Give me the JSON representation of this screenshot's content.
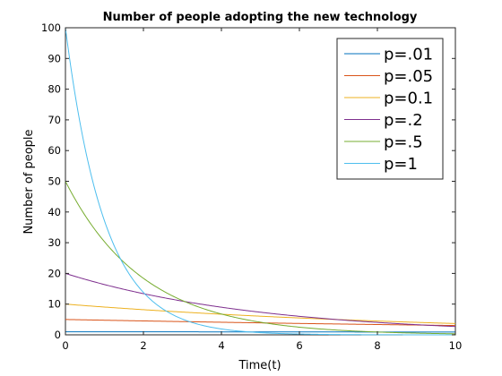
{
  "chart_data": {
    "type": "line",
    "title": "Number of people adopting the new technology",
    "xlabel": "Time(t)",
    "ylabel": "Number of people",
    "xlim": [
      0,
      10
    ],
    "ylim": [
      0,
      100
    ],
    "x_ticks": [
      0,
      2,
      4,
      6,
      8,
      10
    ],
    "y_ticks": [
      0,
      10,
      20,
      30,
      40,
      50,
      60,
      70,
      80,
      90,
      100
    ],
    "grid": false,
    "legend_position": "top-right",
    "x": [
      0,
      0.5,
      1,
      1.5,
      2,
      2.5,
      3,
      3.5,
      4,
      4.5,
      5,
      5.5,
      6,
      6.5,
      7,
      7.5,
      8,
      8.5,
      9,
      9.5,
      10
    ],
    "series": [
      {
        "name": "p=.01",
        "color": "#0072bd",
        "values": [
          1.0,
          0.995,
          0.99,
          0.985,
          0.98,
          0.975,
          0.97,
          0.966,
          0.961,
          0.956,
          0.951,
          0.946,
          0.942,
          0.937,
          0.932,
          0.928,
          0.923,
          0.919,
          0.914,
          0.91,
          0.905
        ]
      },
      {
        "name": "p=.05",
        "color": "#d95319",
        "values": [
          5.0,
          4.877,
          4.756,
          4.639,
          4.524,
          4.412,
          4.304,
          4.197,
          4.094,
          3.993,
          3.894,
          3.798,
          3.704,
          3.613,
          3.523,
          3.436,
          3.352,
          3.269,
          3.188,
          3.109,
          3.033
        ]
      },
      {
        "name": "p=0.1",
        "color": "#edb120",
        "values": [
          10.0,
          9.512,
          9.048,
          8.607,
          8.187,
          7.788,
          7.408,
          7.047,
          6.703,
          6.376,
          6.065,
          5.769,
          5.488,
          5.22,
          4.966,
          4.724,
          4.493,
          4.274,
          4.066,
          3.867,
          3.679
        ]
      },
      {
        "name": "p=.2",
        "color": "#7e2f8e",
        "values": [
          20.0,
          18.097,
          16.375,
          14.816,
          13.406,
          12.131,
          10.976,
          9.932,
          8.987,
          8.131,
          7.358,
          6.657,
          6.024,
          5.451,
          4.932,
          4.463,
          4.038,
          3.654,
          3.306,
          2.991,
          2.707
        ]
      },
      {
        "name": "p=.5",
        "color": "#77ac30",
        "values": [
          50.0,
          38.94,
          30.327,
          23.618,
          18.394,
          14.325,
          11.157,
          8.689,
          6.767,
          5.27,
          4.104,
          3.196,
          2.489,
          1.939,
          1.51,
          1.176,
          0.916,
          0.713,
          0.555,
          0.432,
          0.337
        ]
      },
      {
        "name": "p=1",
        "color": "#4dbeee",
        "values": [
          100.0,
          60.653,
          36.788,
          22.313,
          13.534,
          8.208,
          4.979,
          3.02,
          1.832,
          1.111,
          0.674,
          0.409,
          0.248,
          0.15,
          0.091,
          0.055,
          0.034,
          0.02,
          0.012,
          0.007,
          0.005
        ]
      }
    ]
  }
}
